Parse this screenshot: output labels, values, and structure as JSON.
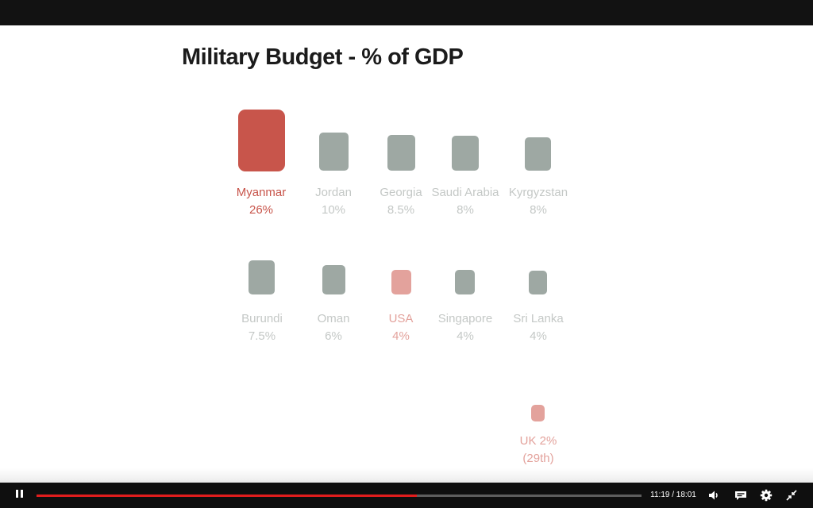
{
  "slide": {
    "title": "Military Budget - % of GDP",
    "highlight_color": "#c8554b",
    "highlight_soft_color": "#e3a29c",
    "neutral_color": "#9ea8a3"
  },
  "chart_data": {
    "type": "bar",
    "title": "Military Budget - % of GDP",
    "categories": [
      "Myanmar",
      "Jordan",
      "Georgia",
      "Saudi Arabia",
      "Kyrgyzstan",
      "Burundi",
      "Oman",
      "USA",
      "Singapore",
      "Sri Lanka",
      "UK"
    ],
    "values": [
      26,
      10,
      8.5,
      8,
      8,
      7.5,
      6,
      4,
      4,
      4,
      2
    ],
    "units": "% of GDP",
    "highlighted": [
      "Myanmar",
      "USA",
      "UK"
    ],
    "labels": [
      {
        "name": "Myanmar",
        "value": "26%"
      },
      {
        "name": "Jordan",
        "value": "10%"
      },
      {
        "name": "Georgia",
        "value": "8.5%"
      },
      {
        "name": "Saudi Arabia",
        "value": "8%"
      },
      {
        "name": "Kyrgyzstan",
        "value": "8%"
      },
      {
        "name": "Burundi",
        "value": "7.5%"
      },
      {
        "name": "Oman",
        "value": "6%"
      },
      {
        "name": "USA",
        "value": "4%"
      },
      {
        "name": "Singapore",
        "value": "4%"
      },
      {
        "name": "Sri Lanka",
        "value": "4%"
      },
      {
        "name": "UK 2%",
        "value": "(29th)"
      }
    ]
  },
  "player": {
    "current_time": "11:19",
    "duration": "18:01",
    "time_display": "11:19 / 18:01",
    "progress_fraction": 0.628,
    "accent_color": "#e11d1d",
    "icons": {
      "play_pause": "pause-icon",
      "volume": "volume-icon",
      "captions": "captions-icon",
      "settings": "gear-icon",
      "fullscreen": "exit-fullscreen-icon"
    }
  }
}
